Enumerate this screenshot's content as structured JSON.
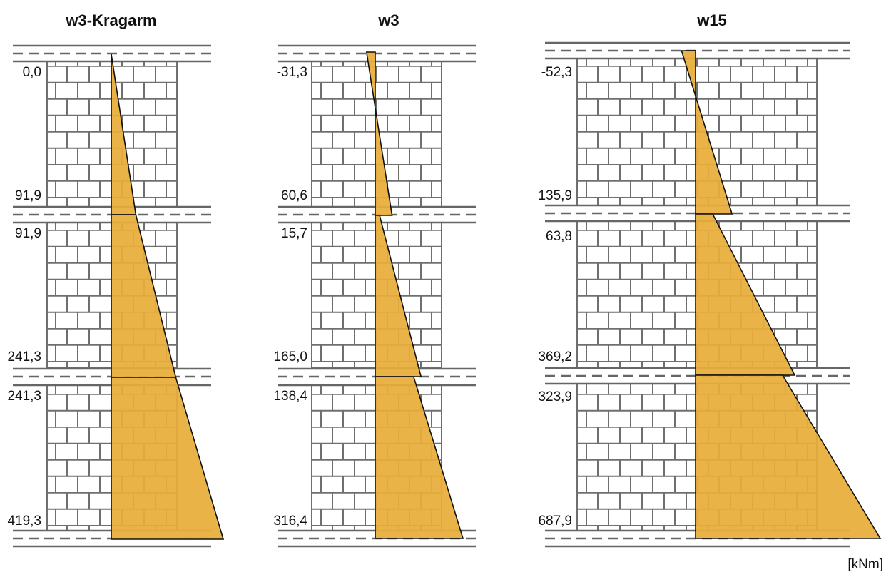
{
  "unit": "[kNm]",
  "colors": {
    "moment_fill": "#E8AD3A",
    "moment_edge": "#111111",
    "masonry_line": "#6f6f6f",
    "slab_line": "#666666"
  },
  "walls": [
    {
      "name": "w3-Kragarm",
      "scale_max": 419.3,
      "storeys": [
        {
          "top_label": "0,0",
          "bottom_label": "91,9",
          "top_value": 0.0,
          "bottom_value": 91.9
        },
        {
          "top_label": "91,9",
          "bottom_label": "241,3",
          "top_value": 91.9,
          "bottom_value": 241.3
        },
        {
          "top_label": "241,3",
          "bottom_label": "419,3",
          "top_value": 241.3,
          "bottom_value": 419.3
        }
      ]
    },
    {
      "name": "w3",
      "scale_max": 316.4,
      "storeys": [
        {
          "top_label": "-31,3",
          "bottom_label": "60,6",
          "top_value": -31.3,
          "bottom_value": 60.6
        },
        {
          "top_label": "15,7",
          "bottom_label": "165,0",
          "top_value": 15.7,
          "bottom_value": 165.0
        },
        {
          "top_label": "138,4",
          "bottom_label": "316,4",
          "top_value": 138.4,
          "bottom_value": 316.4
        }
      ]
    },
    {
      "name": "w15",
      "scale_max": 687.9,
      "storeys": [
        {
          "top_label": "-52,3",
          "bottom_label": "135,9",
          "top_value": -52.3,
          "bottom_value": 135.9
        },
        {
          "top_label": "63,8",
          "bottom_label": "369,2",
          "top_value": 63.8,
          "bottom_value": 369.2
        },
        {
          "top_label": "323,9",
          "bottom_label": "687,9",
          "top_value": 323.9,
          "bottom_value": 687.9
        }
      ]
    }
  ]
}
